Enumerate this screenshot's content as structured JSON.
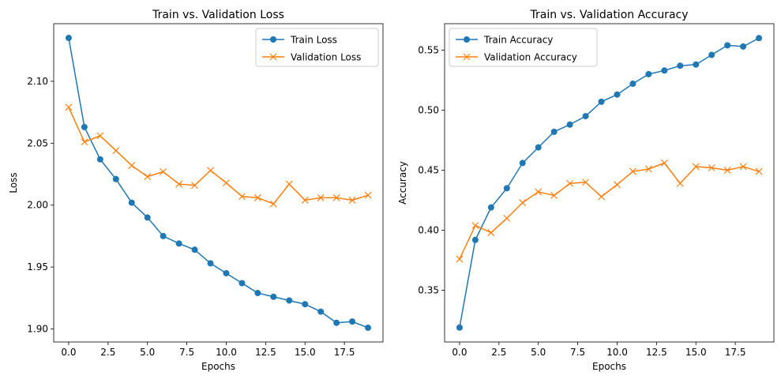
{
  "chart_data": [
    {
      "type": "line",
      "title": "Train vs. Validation Loss",
      "xlabel": "Epochs",
      "ylabel": "Loss",
      "xlim": [
        -0.95,
        19.95
      ],
      "ylim": [
        1.8895,
        2.1465
      ],
      "xticks": [
        0.0,
        2.5,
        5.0,
        7.5,
        10.0,
        12.5,
        15.0,
        17.5
      ],
      "xtick_labels": [
        "0.0",
        "2.5",
        "5.0",
        "7.5",
        "10.0",
        "12.5",
        "15.0",
        "17.5"
      ],
      "yticks": [
        1.9,
        1.95,
        2.0,
        2.05,
        2.1
      ],
      "ytick_labels": [
        "1.90",
        "1.95",
        "2.00",
        "2.05",
        "2.10"
      ],
      "legend_position": "upper right",
      "grid": false,
      "x": [
        0,
        1,
        2,
        3,
        4,
        5,
        6,
        7,
        8,
        9,
        10,
        11,
        12,
        13,
        14,
        15,
        16,
        17,
        18,
        19
      ],
      "series": [
        {
          "name": "Train Loss",
          "color": "#1f77b4",
          "marker": "circle",
          "values": [
            2.135,
            2.063,
            2.037,
            2.021,
            2.002,
            1.99,
            1.975,
            1.969,
            1.964,
            1.953,
            1.945,
            1.937,
            1.929,
            1.926,
            1.923,
            1.92,
            1.914,
            1.905,
            1.906,
            1.901
          ]
        },
        {
          "name": "Validation Loss",
          "color": "#ff7f0e",
          "marker": "x",
          "values": [
            2.079,
            2.051,
            2.056,
            2.044,
            2.032,
            2.023,
            2.027,
            2.017,
            2.016,
            2.028,
            2.018,
            2.007,
            2.006,
            2.001,
            2.017,
            2.004,
            2.006,
            2.006,
            2.004,
            2.008
          ]
        }
      ]
    },
    {
      "type": "line",
      "title": "Train vs. Validation Accuracy",
      "xlabel": "Epochs",
      "ylabel": "Accuracy",
      "xlim": [
        -0.95,
        19.95
      ],
      "ylim": [
        0.307,
        0.572
      ],
      "xticks": [
        0.0,
        2.5,
        5.0,
        7.5,
        10.0,
        12.5,
        15.0,
        17.5
      ],
      "xtick_labels": [
        "0.0",
        "2.5",
        "5.0",
        "7.5",
        "10.0",
        "12.5",
        "15.0",
        "17.5"
      ],
      "yticks": [
        0.35,
        0.4,
        0.45,
        0.5,
        0.55
      ],
      "ytick_labels": [
        "0.35",
        "0.40",
        "0.45",
        "0.50",
        "0.55"
      ],
      "legend_position": "upper left",
      "grid": false,
      "x": [
        0,
        1,
        2,
        3,
        4,
        5,
        6,
        7,
        8,
        9,
        10,
        11,
        12,
        13,
        14,
        15,
        16,
        17,
        18,
        19
      ],
      "series": [
        {
          "name": "Train Accuracy",
          "color": "#1f77b4",
          "marker": "circle",
          "values": [
            0.319,
            0.392,
            0.419,
            0.435,
            0.456,
            0.469,
            0.482,
            0.488,
            0.495,
            0.507,
            0.513,
            0.522,
            0.53,
            0.533,
            0.537,
            0.538,
            0.546,
            0.554,
            0.553,
            0.56
          ]
        },
        {
          "name": "Validation Accuracy",
          "color": "#ff7f0e",
          "marker": "x",
          "values": [
            0.376,
            0.404,
            0.398,
            0.41,
            0.423,
            0.432,
            0.429,
            0.439,
            0.44,
            0.428,
            0.438,
            0.449,
            0.451,
            0.456,
            0.439,
            0.453,
            0.452,
            0.45,
            0.453,
            0.449
          ]
        }
      ]
    }
  ]
}
